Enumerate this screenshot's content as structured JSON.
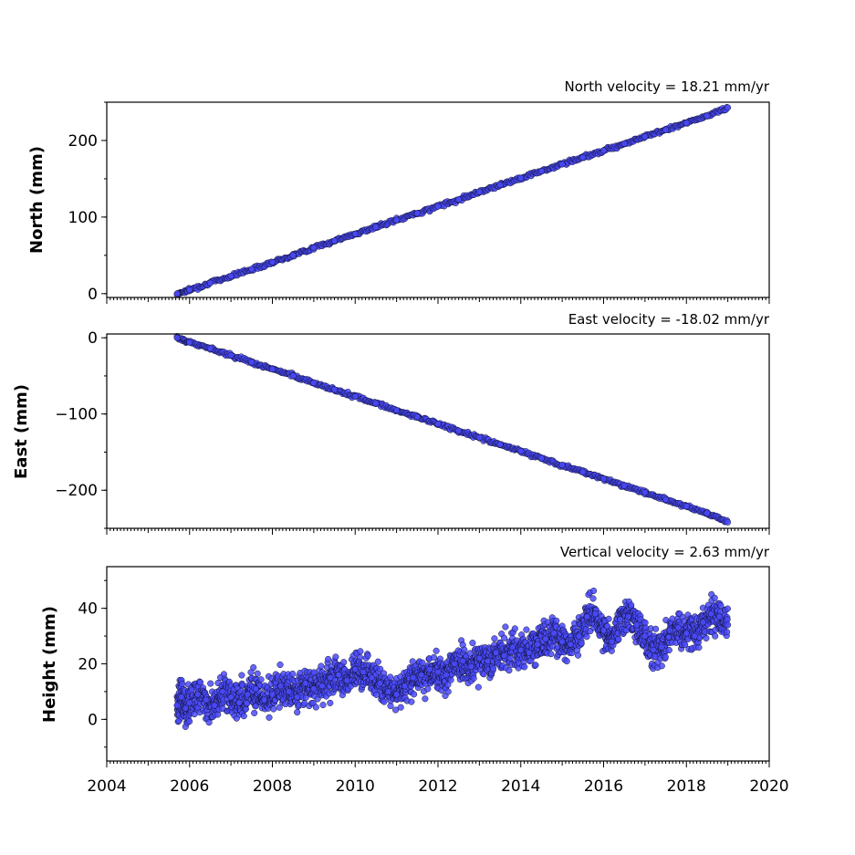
{
  "colors": {
    "marker_fill": "#4b4bff",
    "marker_edge": "#111133"
  },
  "chart_data": [
    {
      "type": "scatter",
      "title": "North velocity = 18.21 mm/yr",
      "xlabel": "",
      "ylabel": "North (mm)",
      "xlim": [
        2004,
        2020
      ],
      "ylim": [
        -5,
        250
      ],
      "yticks": [
        0,
        100,
        200
      ],
      "ytick_labels": [
        "0",
        "100",
        "200"
      ],
      "series": [
        {
          "x": [
            2005.7,
            2006.0,
            2006.5,
            2007.0,
            2007.5,
            2008.0,
            2008.5,
            2009.0,
            2009.5,
            2010.0,
            2010.5,
            2011.0,
            2011.5,
            2012.0,
            2012.5,
            2013.0,
            2013.5,
            2014.0,
            2014.5,
            2015.0,
            2015.5,
            2016.0,
            2016.5,
            2017.0,
            2017.5,
            2018.0,
            2018.5,
            2019.0
          ],
          "y": [
            0,
            5,
            14,
            23,
            32,
            41,
            50,
            60,
            69,
            78,
            87,
            96,
            105,
            114,
            123,
            133,
            142,
            151,
            160,
            169,
            178,
            187,
            196,
            205,
            214,
            223,
            232,
            243
          ]
        }
      ]
    },
    {
      "type": "scatter",
      "title": "East velocity = -18.02 mm/yr",
      "xlabel": "",
      "ylabel": "East (mm)",
      "xlim": [
        2004,
        2020
      ],
      "ylim": [
        -250,
        5
      ],
      "yticks": [
        0,
        -100,
        -200
      ],
      "ytick_labels": [
        "0",
        "−100",
        "−200"
      ],
      "series": [
        {
          "x": [
            2005.7,
            2006.0,
            2006.5,
            2007.0,
            2007.5,
            2008.0,
            2008.5,
            2009.0,
            2009.5,
            2010.0,
            2010.5,
            2011.0,
            2011.5,
            2012.0,
            2012.5,
            2013.0,
            2013.5,
            2014.0,
            2014.5,
            2015.0,
            2015.5,
            2016.0,
            2016.5,
            2017.0,
            2017.5,
            2018.0,
            2018.5,
            2019.0
          ],
          "y": [
            0,
            -6,
            -14,
            -23,
            -32,
            -41,
            -50,
            -59,
            -68,
            -77,
            -86,
            -95,
            -104,
            -113,
            -122,
            -131,
            -140,
            -149,
            -158,
            -167,
            -176,
            -185,
            -194,
            -203,
            -212,
            -221,
            -230,
            -242
          ]
        }
      ]
    },
    {
      "type": "scatter",
      "title": "Vertical velocity = 2.63 mm/yr",
      "xlabel": "",
      "ylabel": "Height (mm)",
      "xlim": [
        2004,
        2020
      ],
      "ylim": [
        -15,
        55
      ],
      "yticks": [
        0,
        20,
        40
      ],
      "ytick_labels": [
        "0",
        "20",
        "40"
      ],
      "xticks": [
        2004,
        2006,
        2008,
        2010,
        2012,
        2014,
        2016,
        2018,
        2020
      ],
      "xtick_labels": [
        "2004",
        "2006",
        "2008",
        "2010",
        "2012",
        "2014",
        "2016",
        "2018",
        "2020"
      ],
      "series": [
        {
          "x": [
            2005.7,
            2005.8,
            2005.9,
            2006.0,
            2006.2,
            2006.4,
            2006.6,
            2006.8,
            2007.0,
            2007.2,
            2007.4,
            2007.6,
            2007.8,
            2008.0,
            2008.2,
            2008.4,
            2008.6,
            2008.8,
            2009.0,
            2009.2,
            2009.4,
            2009.6,
            2009.8,
            2010.0,
            2010.2,
            2010.4,
            2010.6,
            2010.8,
            2011.0,
            2011.2,
            2011.4,
            2011.6,
            2011.8,
            2012.0,
            2012.2,
            2012.4,
            2012.6,
            2012.8,
            2013.0,
            2013.2,
            2013.4,
            2013.6,
            2013.8,
            2014.0,
            2014.2,
            2014.4,
            2014.6,
            2014.8,
            2015.0,
            2015.2,
            2015.4,
            2015.6,
            2015.8,
            2016.0,
            2016.2,
            2016.4,
            2016.6,
            2016.8,
            2017.0,
            2017.2,
            2017.4,
            2017.6,
            2017.8,
            2018.0,
            2018.2,
            2018.4,
            2018.6,
            2018.8,
            2019.0
          ],
          "y": [
            5,
            8,
            4,
            6,
            9,
            7,
            5,
            10,
            8,
            6,
            9,
            11,
            7,
            9,
            12,
            10,
            8,
            13,
            11,
            12,
            15,
            16,
            14,
            18,
            17,
            15,
            13,
            10,
            9,
            12,
            15,
            16,
            18,
            17,
            16,
            20,
            21,
            19,
            22,
            21,
            24,
            23,
            26,
            25,
            24,
            27,
            29,
            31,
            28,
            27,
            30,
            37,
            38,
            32,
            28,
            36,
            37,
            34,
            30,
            25,
            26,
            32,
            33,
            31,
            30,
            35,
            38,
            37,
            34
          ]
        }
      ]
    }
  ]
}
